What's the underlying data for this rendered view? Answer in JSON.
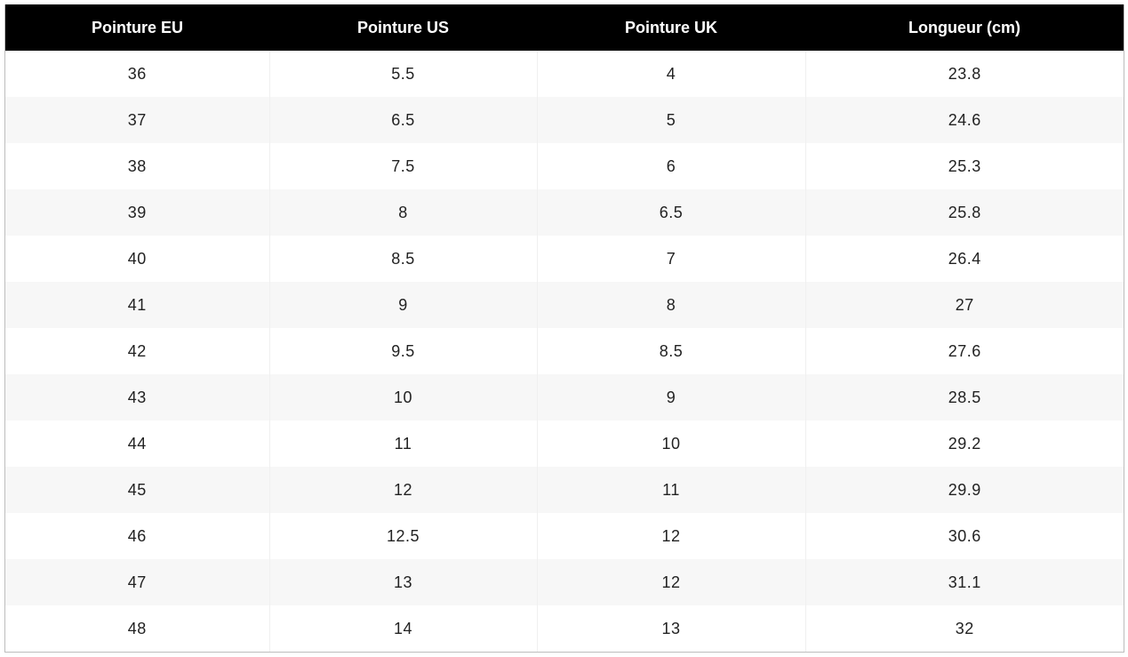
{
  "table": {
    "headers": [
      "Pointure EU",
      "Pointure US",
      "Pointure UK",
      "Longueur (cm)"
    ],
    "rows": [
      [
        "36",
        "5.5",
        "4",
        "23.8"
      ],
      [
        "37",
        "6.5",
        "5",
        "24.6"
      ],
      [
        "38",
        "7.5",
        "6",
        "25.3"
      ],
      [
        "39",
        "8",
        "6.5",
        "25.8"
      ],
      [
        "40",
        "8.5",
        "7",
        "26.4"
      ],
      [
        "41",
        "9",
        "8",
        "27"
      ],
      [
        "42",
        "9.5",
        "8.5",
        "27.6"
      ],
      [
        "43",
        "10",
        "9",
        "28.5"
      ],
      [
        "44",
        "11",
        "10",
        "29.2"
      ],
      [
        "45",
        "12",
        "11",
        "29.9"
      ],
      [
        "46",
        "12.5",
        "12",
        "30.6"
      ],
      [
        "47",
        "13",
        "12",
        "31.1"
      ],
      [
        "48",
        "14",
        "13",
        "32"
      ]
    ]
  }
}
